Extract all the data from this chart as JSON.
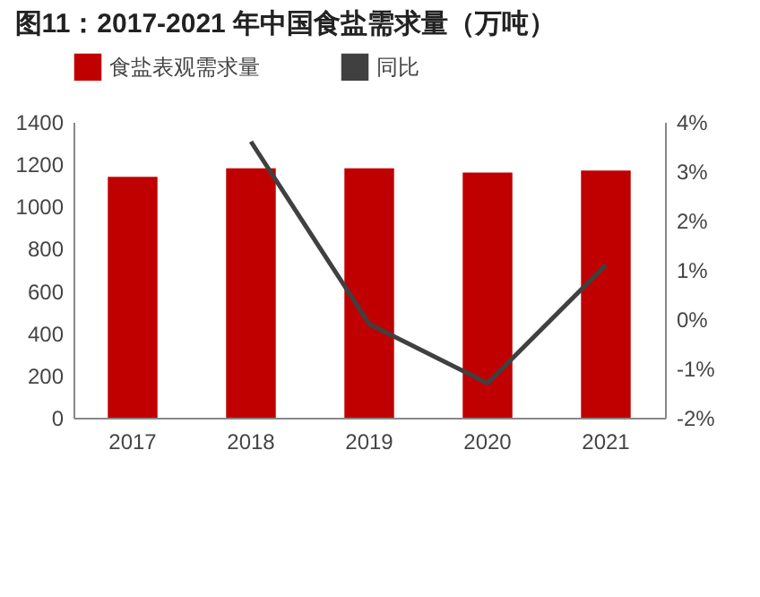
{
  "chart_data": {
    "type": "bar",
    "title": "图11：2017-2021 年中国食盐需求量（万吨）",
    "categories": [
      "2017",
      "2018",
      "2019",
      "2020",
      "2021"
    ],
    "series": [
      {
        "name": "食盐表观需求量",
        "color": "#c00000",
        "values": [
          1140,
          1180,
          1180,
          1160,
          1170
        ]
      },
      {
        "name": "同比",
        "type": "line",
        "axis": "y2",
        "color": "#404040",
        "values": [
          null,
          3.6,
          -0.1,
          -1.3,
          1.1
        ]
      }
    ],
    "ylim": [
      0,
      1400
    ],
    "yticks": [
      0,
      200,
      400,
      600,
      800,
      1000,
      1200,
      1400
    ],
    "y2lim": [
      -2,
      4
    ],
    "y2ticks": [
      {
        "value": -2,
        "label": "-2%"
      },
      {
        "value": -1,
        "label": "-1%"
      },
      {
        "value": 0,
        "label": "0%"
      },
      {
        "value": 1,
        "label": "1%"
      },
      {
        "value": 2,
        "label": "2%"
      },
      {
        "value": 3,
        "label": "3%"
      },
      {
        "value": 4,
        "label": "4%"
      }
    ],
    "legend": "top",
    "grid": false
  }
}
